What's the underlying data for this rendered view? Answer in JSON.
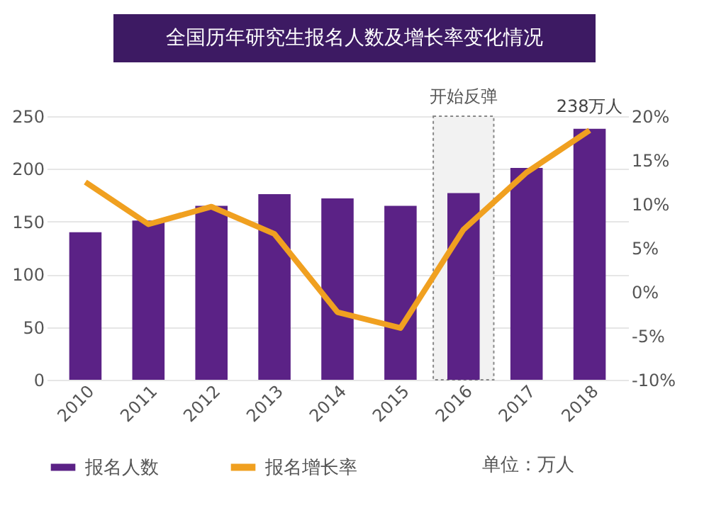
{
  "chart_data": {
    "type": "bar",
    "title": "全国历年研究生报名人数及增长率变化情况",
    "categories": [
      "2010",
      "2011",
      "2012",
      "2013",
      "2014",
      "2015",
      "2016",
      "2017",
      "2018"
    ],
    "series": [
      {
        "name": "报名人数",
        "color": "#5b2286",
        "values": [
          140,
          151,
          165,
          176,
          172,
          165,
          177,
          201,
          238
        ]
      },
      {
        "name": "报名增长率",
        "type": "line",
        "axis": "y2",
        "color": "#f0a020",
        "values": [
          12.5,
          7.7,
          9.7,
          6.6,
          -2.3,
          -4.1,
          7.1,
          13.6,
          18.4
        ]
      }
    ],
    "ylim": [
      0,
      250
    ],
    "yticks": [
      0,
      50,
      100,
      150,
      200,
      250
    ],
    "y2lim": [
      -10,
      20
    ],
    "y2ticks": [
      {
        "value": -10,
        "label": "-10%"
      },
      {
        "value": -5,
        "label": "-5%"
      },
      {
        "value": 0,
        "label": "0%"
      },
      {
        "value": 5,
        "label": "5%"
      },
      {
        "value": 10,
        "label": "10%"
      },
      {
        "value": 15,
        "label": "15%"
      },
      {
        "value": 20,
        "label": "20%"
      }
    ],
    "bands": [
      {
        "axis": "x",
        "from": "2016",
        "to": "2016",
        "label": "开始反弹",
        "color": "#f2f2f2"
      }
    ],
    "annotations": [
      {
        "text": "238万人",
        "x": "2018",
        "y": 238
      },
      "单位：万人"
    ],
    "grid": "y",
    "legend": "bottom",
    "line_style": "solid",
    "marker": "none"
  }
}
